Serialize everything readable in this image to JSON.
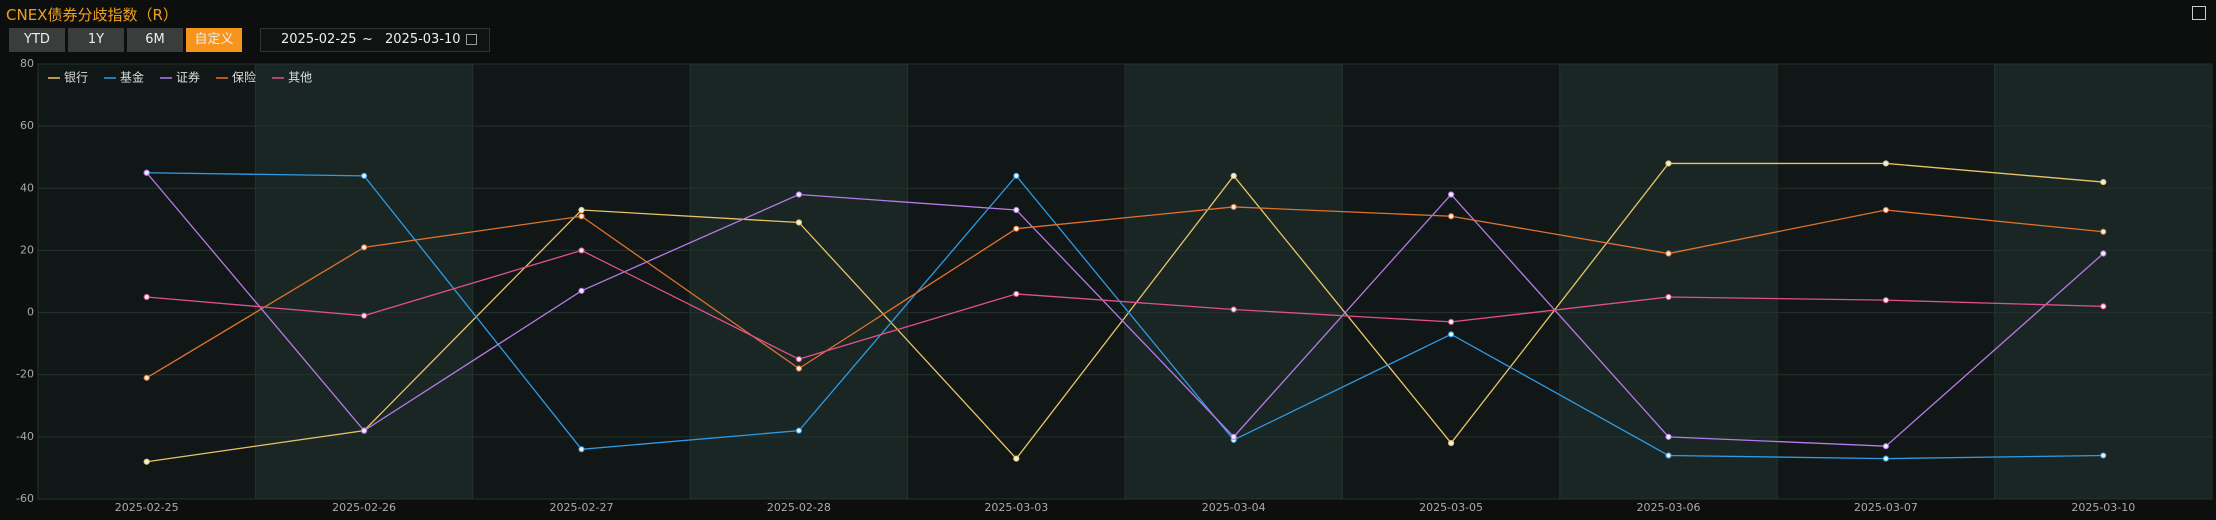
{
  "controls": {
    "title": "CNEX债券分歧指数（R）",
    "buttons": [
      "YTD",
      "1Y",
      "6M",
      "自定义"
    ],
    "date_start": "2025-02-25",
    "date_sep": "~",
    "date_end": "2025-03-10"
  },
  "chart_data": {
    "type": "line",
    "categories": [
      "2025-02-25",
      "2025-02-26",
      "2025-02-27",
      "2025-02-28",
      "2025-03-03",
      "2025-03-04",
      "2025-03-05",
      "2025-03-06",
      "2025-03-07",
      "2025-03-10"
    ],
    "series": [
      {
        "name": "银行",
        "color": "#e8c468",
        "values": [
          -48,
          -38,
          33,
          29,
          -47,
          44,
          -42,
          48,
          48,
          42
        ]
      },
      {
        "name": "基金",
        "color": "#2e9be6",
        "values": [
          45,
          44,
          -44,
          -38,
          44,
          -41,
          -7,
          -46,
          -47,
          -46
        ]
      },
      {
        "name": "证券",
        "color": "#b57be8",
        "values": [
          45,
          -38,
          7,
          38,
          33,
          -40,
          38,
          -40,
          -43,
          19
        ]
      },
      {
        "name": "保险",
        "color": "#e0722e",
        "values": [
          -21,
          21,
          31,
          -18,
          27,
          34,
          31,
          19,
          33,
          26
        ]
      },
      {
        "name": "其他",
        "color": "#e0508c",
        "values": [
          5,
          -1,
          20,
          -15,
          6,
          1,
          -3,
          5,
          4,
          2
        ]
      }
    ],
    "ylim": [
      -60,
      80
    ],
    "yticks": [
      -60,
      -40,
      -20,
      0,
      20,
      40,
      60,
      80
    ],
    "grid": true,
    "legend": "top-left"
  }
}
